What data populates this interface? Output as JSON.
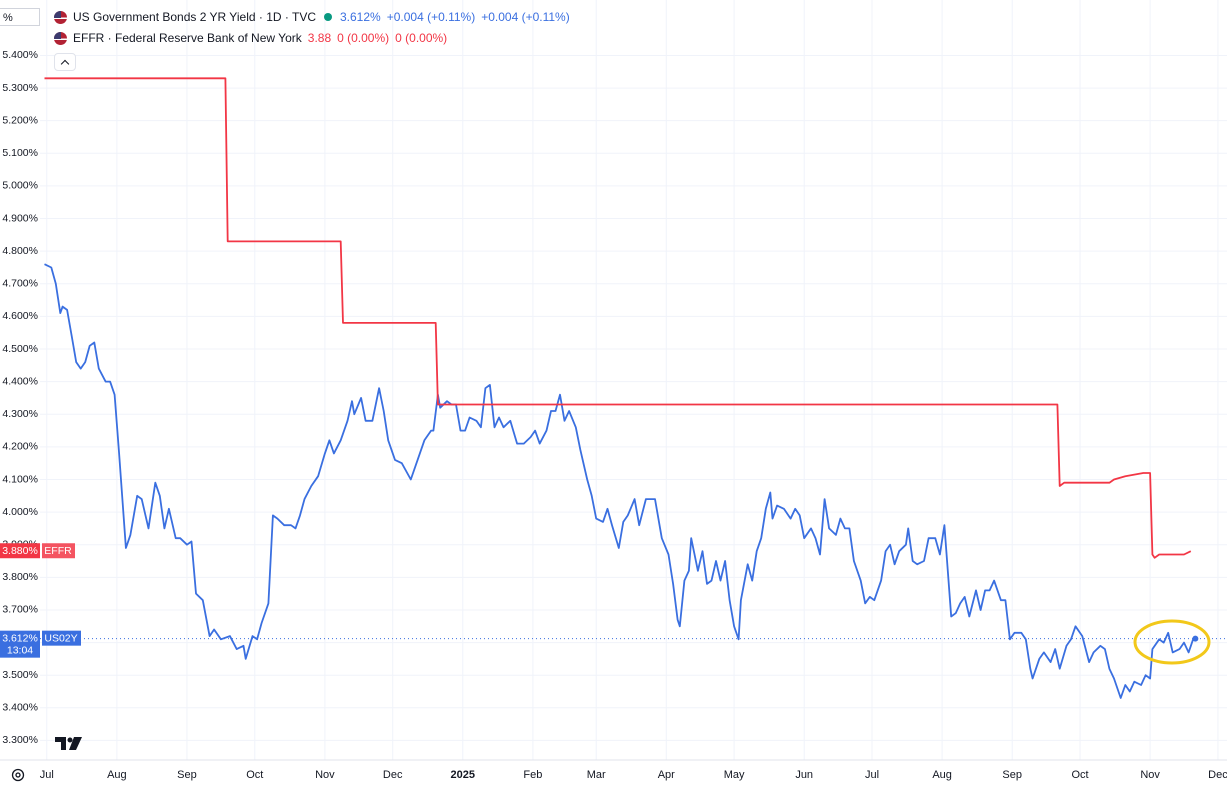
{
  "chart_data": {
    "type": "line",
    "axis_unit": "%",
    "xlim": [
      -3,
      522
    ],
    "ylim": [
      3.24,
      5.57
    ],
    "grid": true,
    "xticks": [
      {
        "value": 0,
        "label": "Jul"
      },
      {
        "value": 31,
        "label": "Aug"
      },
      {
        "value": 62,
        "label": "Sep"
      },
      {
        "value": 92,
        "label": "Oct"
      },
      {
        "value": 123,
        "label": "Nov"
      },
      {
        "value": 153,
        "label": "Dec"
      },
      {
        "value": 184,
        "label": "2025",
        "emphasis": true
      },
      {
        "value": 215,
        "label": "Feb"
      },
      {
        "value": 243,
        "label": "Mar"
      },
      {
        "value": 274,
        "label": "Apr"
      },
      {
        "value": 304,
        "label": "May"
      },
      {
        "value": 335,
        "label": "Jun"
      },
      {
        "value": 365,
        "label": "Jul"
      },
      {
        "value": 396,
        "label": "Aug"
      },
      {
        "value": 427,
        "label": "Sep"
      },
      {
        "value": 457,
        "label": "Oct"
      },
      {
        "value": 488,
        "label": "Nov"
      },
      {
        "value": 518,
        "label": "Dec"
      }
    ],
    "yticks": [
      {
        "value": 3.3,
        "label": "3.300%"
      },
      {
        "value": 3.4,
        "label": "3.400%"
      },
      {
        "value": 3.5,
        "label": "3.500%"
      },
      {
        "value": 3.6,
        "label": "3.600%"
      },
      {
        "value": 3.7,
        "label": "3.700%"
      },
      {
        "value": 3.8,
        "label": "3.800%"
      },
      {
        "value": 3.9,
        "label": "3.900%"
      },
      {
        "value": 4.0,
        "label": "4.000%"
      },
      {
        "value": 4.1,
        "label": "4.100%"
      },
      {
        "value": 4.2,
        "label": "4.200%"
      },
      {
        "value": 4.3,
        "label": "4.300%"
      },
      {
        "value": 4.4,
        "label": "4.400%"
      },
      {
        "value": 4.5,
        "label": "4.500%"
      },
      {
        "value": 4.6,
        "label": "4.600%"
      },
      {
        "value": 4.7,
        "label": "4.700%"
      },
      {
        "value": 4.8,
        "label": "4.800%"
      },
      {
        "value": 4.9,
        "label": "4.900%"
      },
      {
        "value": 5.0,
        "label": "5.000%"
      },
      {
        "value": 5.1,
        "label": "5.100%"
      },
      {
        "value": 5.2,
        "label": "5.200%"
      },
      {
        "value": 5.3,
        "label": "5.300%"
      },
      {
        "value": 5.4,
        "label": "5.400%"
      }
    ],
    "series": [
      {
        "name": "US Government Bonds 2 YR Yield · 1D · TVC",
        "color": "#3a6fe0",
        "legend_values": [
          "3.612%",
          "+0.004 (+0.11%)",
          "+0.004 (+0.11%)"
        ],
        "price_label": "3.612%",
        "time_label": "13:04",
        "tag": "US02Y",
        "x": [
          -1,
          2,
          4,
          6,
          7,
          9,
          11,
          13,
          15,
          17,
          19,
          21,
          23,
          26,
          28,
          30,
          32,
          35,
          37,
          40,
          42,
          45,
          48,
          50,
          52,
          54,
          57,
          59,
          62,
          64,
          66,
          69,
          72,
          74,
          77,
          81,
          84,
          87,
          88,
          91,
          93,
          95,
          98,
          100,
          102,
          105,
          108,
          110,
          112,
          114,
          117,
          120,
          123,
          125,
          127,
          130,
          133,
          135,
          136,
          139,
          141,
          144,
          147,
          149,
          151,
          154,
          157,
          161,
          164,
          167,
          170,
          171,
          173,
          174,
          177,
          179,
          181,
          183,
          185,
          187,
          190,
          192,
          194,
          196,
          198,
          200,
          202,
          205,
          208,
          211,
          214,
          216,
          218,
          221,
          223,
          225,
          227,
          229,
          231,
          234,
          236,
          239,
          241,
          243,
          246,
          248,
          250,
          253,
          255,
          257,
          260,
          262,
          265,
          267,
          269,
          272,
          275,
          277,
          279,
          280,
          282,
          284,
          285,
          288,
          290,
          292,
          294,
          296,
          298,
          300,
          302,
          304,
          306,
          307,
          310,
          312,
          314,
          316,
          318,
          320,
          321,
          323,
          326,
          329,
          331,
          333,
          335,
          338,
          340,
          342,
          344,
          346,
          349,
          351,
          353,
          355,
          357,
          360,
          362,
          364,
          366,
          369,
          371,
          373,
          375,
          377,
          380,
          381,
          383,
          385,
          388,
          390,
          393,
          395,
          397,
          400,
          402,
          404,
          406,
          408,
          411,
          413,
          415,
          417,
          419,
          422,
          424,
          426,
          428,
          431,
          433,
          435,
          436,
          439,
          441,
          444,
          446,
          448,
          451,
          453,
          455,
          458,
          461,
          463,
          466,
          468,
          470,
          472,
          475,
          477,
          479,
          481,
          484,
          486,
          488,
          489,
          492,
          494,
          496,
          498,
          501,
          503,
          505,
          507,
          508
        ],
        "values": [
          4.76,
          4.75,
          4.7,
          4.61,
          4.63,
          4.62,
          4.54,
          4.46,
          4.44,
          4.46,
          4.51,
          4.52,
          4.44,
          4.4,
          4.4,
          4.36,
          4.18,
          3.89,
          3.93,
          4.05,
          4.04,
          3.95,
          4.09,
          4.05,
          3.95,
          4.01,
          3.92,
          3.92,
          3.9,
          3.91,
          3.75,
          3.73,
          3.62,
          3.64,
          3.61,
          3.62,
          3.58,
          3.59,
          3.55,
          3.62,
          3.61,
          3.66,
          3.72,
          3.99,
          3.98,
          3.96,
          3.96,
          3.95,
          3.99,
          4.04,
          4.08,
          4.11,
          4.18,
          4.22,
          4.18,
          4.22,
          4.28,
          4.34,
          4.3,
          4.35,
          4.28,
          4.28,
          4.38,
          4.31,
          4.22,
          4.16,
          4.15,
          4.1,
          4.16,
          4.22,
          4.25,
          4.25,
          4.36,
          4.32,
          4.34,
          4.33,
          4.33,
          4.25,
          4.25,
          4.29,
          4.28,
          4.26,
          4.38,
          4.39,
          4.26,
          4.29,
          4.26,
          4.28,
          4.21,
          4.21,
          4.23,
          4.25,
          4.21,
          4.25,
          4.31,
          4.31,
          4.36,
          4.28,
          4.31,
          4.26,
          4.19,
          4.1,
          4.05,
          3.98,
          3.97,
          4.01,
          3.96,
          3.89,
          3.97,
          3.99,
          4.04,
          3.96,
          4.04,
          4.04,
          4.04,
          3.92,
          3.87,
          3.78,
          3.67,
          3.65,
          3.79,
          3.82,
          3.92,
          3.82,
          3.88,
          3.78,
          3.79,
          3.85,
          3.79,
          3.85,
          3.73,
          3.65,
          3.61,
          3.73,
          3.84,
          3.79,
          3.88,
          3.92,
          4.01,
          4.06,
          3.98,
          4.02,
          4.01,
          3.98,
          4.01,
          3.99,
          3.92,
          3.95,
          3.92,
          3.87,
          4.04,
          3.95,
          3.93,
          3.98,
          3.95,
          3.95,
          3.85,
          3.79,
          3.72,
          3.74,
          3.73,
          3.79,
          3.88,
          3.9,
          3.84,
          3.88,
          3.9,
          3.95,
          3.85,
          3.84,
          3.85,
          3.92,
          3.92,
          3.87,
          3.96,
          3.68,
          3.69,
          3.72,
          3.74,
          3.68,
          3.76,
          3.7,
          3.76,
          3.76,
          3.79,
          3.73,
          3.73,
          3.61,
          3.63,
          3.63,
          3.61,
          3.52,
          3.49,
          3.55,
          3.57,
          3.54,
          3.58,
          3.52,
          3.59,
          3.61,
          3.65,
          3.62,
          3.54,
          3.57,
          3.59,
          3.58,
          3.52,
          3.49,
          3.43,
          3.47,
          3.45,
          3.48,
          3.47,
          3.5,
          3.49,
          3.58,
          3.61,
          3.6,
          3.63,
          3.57,
          3.58,
          3.6,
          3.57,
          3.61,
          3.612
        ]
      },
      {
        "name": "EFFR · Federal Reserve Bank of New York",
        "color": "#f23645",
        "legend_values": [
          "3.88",
          "0 (0.00%)",
          "0 (0.00%)"
        ],
        "price_label": "3.880%",
        "tag": "EFFR",
        "x": [
          -1,
          79,
          80,
          130,
          131,
          172,
          173,
          447,
          448,
          450,
          470,
          472,
          477,
          485,
          488,
          489,
          490,
          492,
          503,
          506
        ],
        "values": [
          5.33,
          5.33,
          4.83,
          4.83,
          4.58,
          4.58,
          4.33,
          4.33,
          4.08,
          4.09,
          4.09,
          4.1,
          4.11,
          4.12,
          4.12,
          3.87,
          3.86,
          3.87,
          3.87,
          3.88
        ]
      }
    ]
  }
}
